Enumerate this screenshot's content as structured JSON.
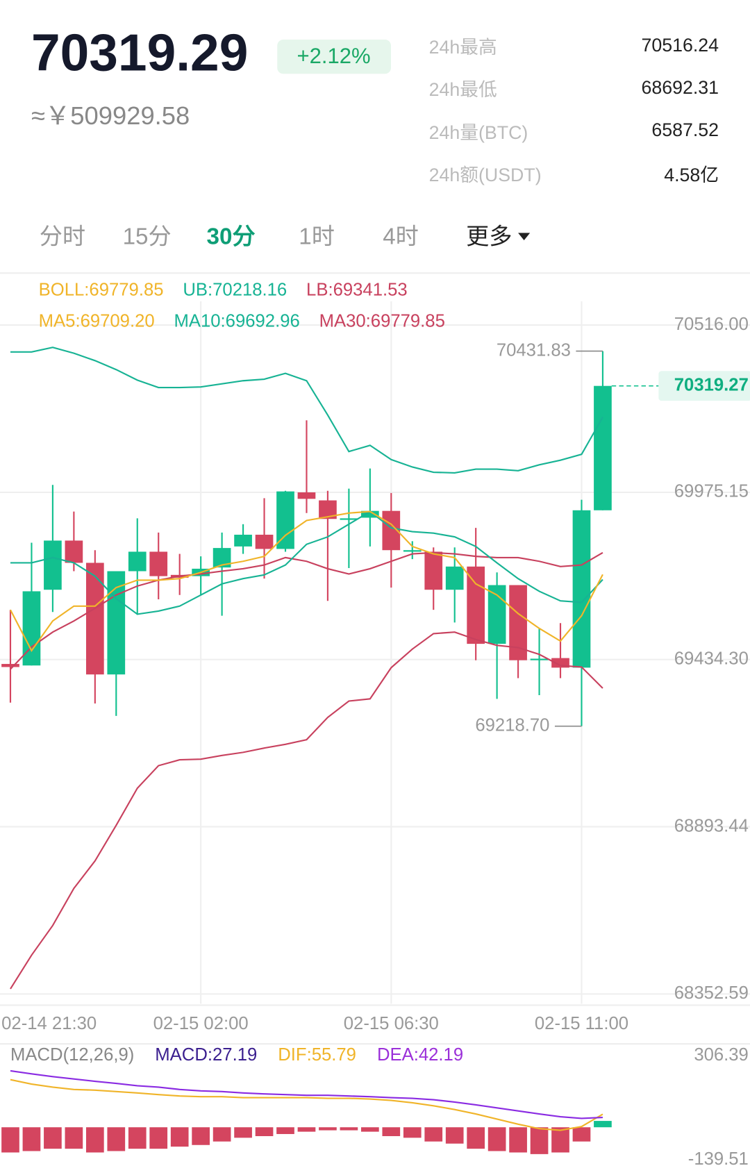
{
  "header": {
    "price": "70319.29",
    "change": "+2.12%",
    "cny": "≈￥509929.58",
    "stats": [
      {
        "label": "24h最高",
        "value": "70516.24"
      },
      {
        "label": "24h最低",
        "value": "68692.31"
      },
      {
        "label": "24h量(BTC)",
        "value": "6587.52"
      },
      {
        "label": "24h额(USDT)",
        "value": "4.58亿"
      }
    ]
  },
  "tabs": {
    "items": [
      "分时",
      "15分",
      "30分",
      "1时",
      "4时",
      "更多"
    ],
    "active": 2
  },
  "chart_data": [
    {
      "type": "candlestick",
      "legend": [
        [
          {
            "text": "BOLL:69779.85",
            "color": "#f0b429"
          },
          {
            "text": "UB:70218.16",
            "color": "#17b394"
          },
          {
            "text": "LB:69341.53",
            "color": "#c8415e"
          }
        ],
        [
          {
            "text": "MA5:69709.20",
            "color": "#f0b429"
          },
          {
            "text": "MA10:69692.96",
            "color": "#17b394"
          },
          {
            "text": "MA30:69779.85",
            "color": "#c8415e"
          }
        ]
      ],
      "categories": [
        "02-14 21:30",
        null,
        null,
        null,
        null,
        null,
        null,
        null,
        null,
        "02-15 02:00",
        null,
        null,
        null,
        null,
        null,
        null,
        null,
        null,
        "02-15 06:30",
        null,
        null,
        null,
        null,
        null,
        null,
        null,
        null,
        "02-15 11:00",
        null
      ],
      "candles": {
        "open": [
          69420,
          69415,
          69660,
          69819,
          69747,
          69386,
          69720,
          69783,
          69708,
          69704,
          69732,
          69800,
          69838,
          69792,
          69975,
          69949,
          69886,
          69893,
          69915,
          69783,
          69783,
          69660,
          69735,
          69485,
          69675,
          69432,
          69439,
          69408,
          69917
        ],
        "high": [
          69595,
          69812,
          69999,
          69913,
          69788,
          69720,
          69891,
          69845,
          69776,
          69768,
          69845,
          69872,
          69956,
          69980,
          70208,
          69980,
          69987,
          70052,
          69973,
          69817,
          69797,
          69797,
          69860,
          69716,
          69675,
          69535,
          69552,
          69951,
          70431.83
        ],
        "low": [
          69295,
          69415,
          69588,
          69720,
          69292,
          69252,
          69579,
          69629,
          69643,
          69643,
          69576,
          69776,
          69696,
          69783,
          69908,
          69624,
          69730,
          69800,
          69667,
          69759,
          69595,
          69554,
          69432,
          69307,
          69374,
          69319,
          69374,
          69218.7,
          69917
        ],
        "close": [
          69410,
          69655,
          69819,
          69747,
          69386,
          69720,
          69783,
          69704,
          69699,
          69728,
          69795,
          69838,
          69792,
          69978,
          69954,
          69889,
          69891,
          69915,
          69788,
          69788,
          69660,
          69735,
          69485,
          69675,
          69432,
          69437,
          69408,
          69917,
          70319.27
        ]
      },
      "up_color": "#12c08f",
      "down_color": "#d4455f",
      "overlays": [
        {
          "color": "#17b394",
          "values": [
            70429,
            70429,
            70444,
            70425,
            70401,
            70372,
            70338,
            70314,
            70314,
            70316,
            70326,
            70336,
            70341,
            70360,
            70336,
            70225,
            70107,
            70127,
            70081,
            70057,
            70040,
            70038,
            70050,
            70050,
            70045,
            70064,
            70079,
            70098,
            70218.16
          ]
        },
        {
          "color": "#c8415e",
          "values": [
            68369,
            68478,
            68574,
            68694,
            68783,
            68898,
            69018,
            69091,
            69110,
            69112,
            69124,
            69134,
            69148,
            69160,
            69175,
            69247,
            69300,
            69307,
            69408,
            69468,
            69518,
            69523,
            69499,
            69480,
            69473,
            69451,
            69415,
            69410,
            69341.53
          ]
        },
        {
          "color": "#c8415e",
          "values": [
            69403,
            69475,
            69523,
            69559,
            69600,
            69643,
            69672,
            69691,
            69704,
            69711,
            69720,
            69728,
            69740,
            69764,
            69752,
            69728,
            69711,
            69728,
            69752,
            69776,
            69780,
            69776,
            69768,
            69764,
            69764,
            69752,
            69735,
            69740,
            69779.85
          ]
        },
        {
          "color": "#17b394",
          "values": [
            69747,
            69747,
            69764,
            69747,
            69704,
            69631,
            69581,
            69591,
            69607,
            69643,
            69679,
            69696,
            69708,
            69740,
            69807,
            69831,
            69872,
            69913,
            69860,
            69848,
            69843,
            69831,
            69800,
            69747,
            69696,
            69655,
            69624,
            69619,
            69692.96
          ]
        },
        {
          "color": "#f0b429",
          "values": [
            69595,
            69463,
            69559,
            69607,
            69607,
            69667,
            69691,
            69691,
            69696,
            69716,
            69740,
            69752,
            69768,
            69836,
            69884,
            69896,
            69908,
            69913,
            69872,
            69800,
            69776,
            69764,
            69679,
            69643,
            69583,
            69535,
            69494,
            69576,
            69709.2
          ]
        }
      ],
      "annotations": {
        "high": "70431.83",
        "low": "69218.70",
        "last": "70319.27"
      },
      "ylim": [
        68321,
        70593
      ],
      "yticks": [
        {
          "value": 70516,
          "label": "70516.00"
        },
        69975.15,
        {
          "value": 69434.3,
          "label": "69434.30"
        },
        68893.44,
        68352.59
      ],
      "grid": true
    },
    {
      "type": "macd",
      "legend": [
        {
          "text": "MACD(12,26,9)",
          "color": "#888888"
        },
        {
          "text": "MACD:27.19",
          "color": "#3b1f8f"
        },
        {
          "text": "DIF:55.79",
          "color": "#f0b429"
        },
        {
          "text": "DEA:42.19",
          "color": "#9b30d9"
        }
      ],
      "values": [
        -108,
        -102,
        -92,
        -92,
        -108,
        -102,
        -92,
        -92,
        -83,
        -76,
        -61,
        -45,
        -38,
        -29,
        -19,
        -13,
        -13,
        -19,
        -38,
        -45,
        -61,
        -70,
        -92,
        -102,
        -108,
        -115,
        -108,
        -61,
        27.19
      ],
      "series": [
        {
          "color": "#f0b429",
          "values": [
            204,
            185,
            172,
            162,
            159,
            153,
            147,
            140,
            134,
            131,
            131,
            127,
            127,
            127,
            127,
            124,
            124,
            121,
            115,
            105,
            92,
            76,
            57,
            35,
            13,
            -6,
            -13,
            3,
            55.79
          ]
        },
        {
          "color": "#8a2be2",
          "values": [
            242,
            229,
            217,
            207,
            197,
            188,
            178,
            172,
            162,
            156,
            153,
            147,
            143,
            140,
            137,
            137,
            134,
            131,
            127,
            124,
            118,
            108,
            96,
            83,
            70,
            57,
            45,
            38,
            42.19
          ]
        }
      ],
      "up_color": "#12c08f",
      "down_color": "#d4455f",
      "ylim": [
        -139.51,
        306.39
      ],
      "yticks": [
        306.39,
        -139.51
      ]
    }
  ]
}
